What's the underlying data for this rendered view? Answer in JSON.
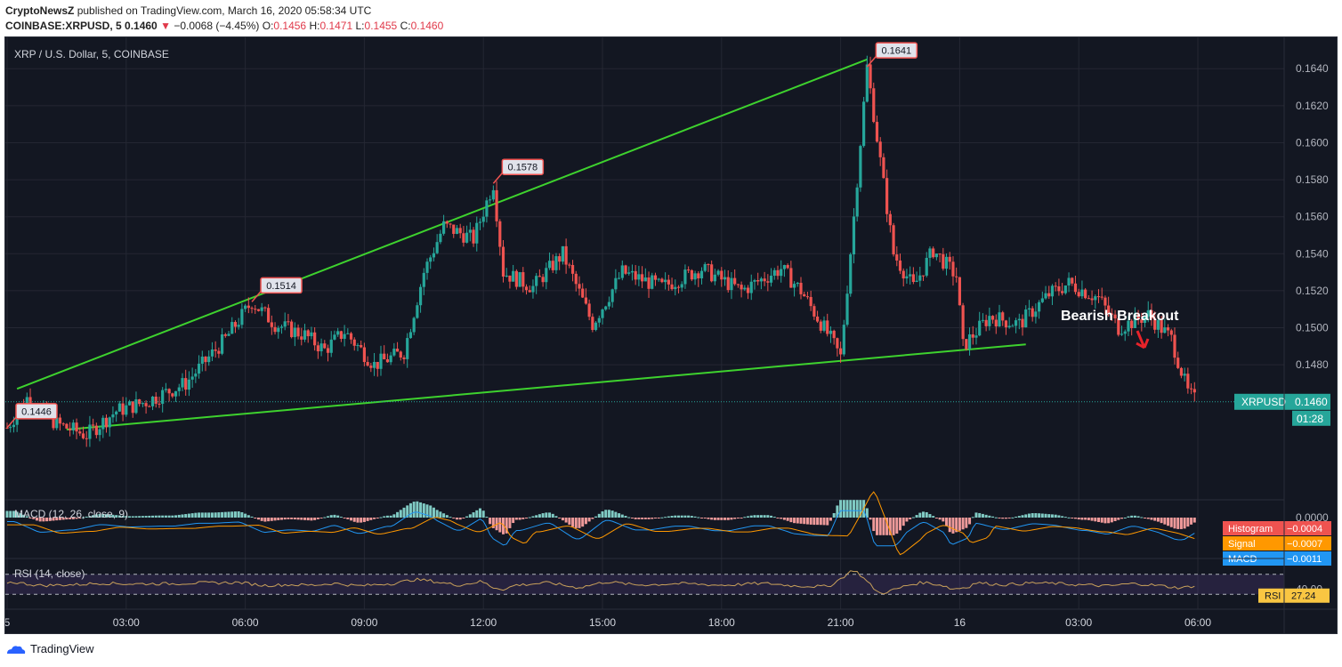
{
  "header": {
    "publisher": "CryptoNewsZ",
    "published_text": "published on TradingView.com, March 16, 2020 05:58:34 UTC",
    "symbol": "COINBASE:XRPUSD, 5",
    "last": "0.1460",
    "change": "−0.0068 (−4.45%)",
    "o_label": "O:",
    "o": "0.1456",
    "h_label": "H:",
    "h": "0.1471",
    "l_label": "L:",
    "l": "0.1455",
    "c_label": "C:",
    "c": "0.1460"
  },
  "colors": {
    "up": "#26a69a",
    "down": "#ef5350",
    "trend": "#3ed22e",
    "background": "#131722",
    "grid": "#242733",
    "macd": "#2196f3",
    "signal": "#ff9800",
    "rsi": "#c9a15b"
  },
  "chart_data": {
    "type": "candlestick",
    "title": "XRP / U.S. Dollar, 5, COINBASE",
    "y_range": [
      0.1408,
      0.1655
    ],
    "y_ticks": [
      "0.1640",
      "0.1620",
      "0.1600",
      "0.1580",
      "0.1560",
      "0.1540",
      "0.1520",
      "0.1500",
      "0.1480"
    ],
    "x_ticks": [
      "5",
      "03:00",
      "06:00",
      "09:00",
      "12:00",
      "15:00",
      "18:00",
      "21:00",
      "16",
      "03:00",
      "06:00"
    ],
    "price_path": [
      [
        "00:00",
        0.1446
      ],
      [
        "00:30",
        0.1462
      ],
      [
        "01:15",
        0.1448
      ],
      [
        "02:00",
        0.1442
      ],
      [
        "02:45",
        0.1455
      ],
      [
        "03:30",
        0.146
      ],
      [
        "04:30",
        0.147
      ],
      [
        "05:30",
        0.1494
      ],
      [
        "06:10",
        0.1514
      ],
      [
        "06:45",
        0.1502
      ],
      [
        "07:30",
        0.1496
      ],
      [
        "08:00",
        0.1488
      ],
      [
        "08:30",
        0.1498
      ],
      [
        "09:15",
        0.148
      ],
      [
        "10:00",
        0.1487
      ],
      [
        "10:30",
        0.153
      ],
      [
        "11:00",
        0.1555
      ],
      [
        "11:45",
        0.1548
      ],
      [
        "12:15",
        0.1578
      ],
      [
        "12:30",
        0.153
      ],
      [
        "13:15",
        0.1522
      ],
      [
        "14:00",
        0.154
      ],
      [
        "14:45",
        0.1502
      ],
      [
        "15:30",
        0.153
      ],
      [
        "16:30",
        0.1522
      ],
      [
        "17:30",
        0.1532
      ],
      [
        "18:30",
        0.152
      ],
      [
        "19:30",
        0.1532
      ],
      [
        "20:00",
        0.152
      ],
      [
        "20:45",
        0.1494
      ],
      [
        "21:00",
        0.1484
      ],
      [
        "21:20",
        0.156
      ],
      [
        "21:40",
        0.1641
      ],
      [
        "22:00",
        0.159
      ],
      [
        "22:20",
        0.154
      ],
      [
        "22:50",
        0.1522
      ],
      [
        "23:20",
        0.1542
      ],
      [
        "23:55",
        0.1528
      ],
      [
        "00:05",
        0.149
      ],
      [
        "00:45",
        0.1506
      ],
      [
        "01:30",
        0.1502
      ],
      [
        "02:15",
        0.1518
      ],
      [
        "02:45",
        0.1524
      ],
      [
        "03:30",
        0.1516
      ],
      [
        "04:00",
        0.15
      ],
      [
        "04:45",
        0.1507
      ],
      [
        "05:20",
        0.1494
      ],
      [
        "05:45",
        0.1465
      ],
      [
        "05:58",
        0.146
      ]
    ],
    "price_labels": [
      {
        "text": "0.1446",
        "time": "00:00",
        "value": 0.1446
      },
      {
        "text": "0.1514",
        "time": "06:10",
        "value": 0.1514
      },
      {
        "text": "0.1578",
        "time": "12:15",
        "value": 0.1578
      },
      {
        "text": "0.1641",
        "time": "21:40",
        "value": 0.1641
      }
    ],
    "trendlines": [
      {
        "from": [
          "00:15",
          0.1467
        ],
        "to": [
          "21:40",
          0.1645
        ]
      },
      {
        "from": [
          "01:30",
          0.1445
        ],
        "to": [
          "01:40+1d",
          0.1491
        ]
      }
    ],
    "annotation": "Bearish Breakout",
    "last_price_label": "XRPUSD",
    "last_price": "0.1460",
    "countdown": "01:28",
    "macd": {
      "title": "MACD (12, 26, close, 9)",
      "zero_tick": "0.0000",
      "histogram_label": "Histogram",
      "histogram": "−0.0004",
      "signal_label": "Signal",
      "signal": "−0.0007",
      "macd_label": "MACD",
      "macd": "−0.0011"
    },
    "rsi": {
      "title": "RSI (14, close)",
      "tick_40": "40.00",
      "label": "RSI",
      "value": "27.24",
      "bands": [
        70,
        30
      ]
    }
  },
  "footer": {
    "brand": "TradingView"
  }
}
